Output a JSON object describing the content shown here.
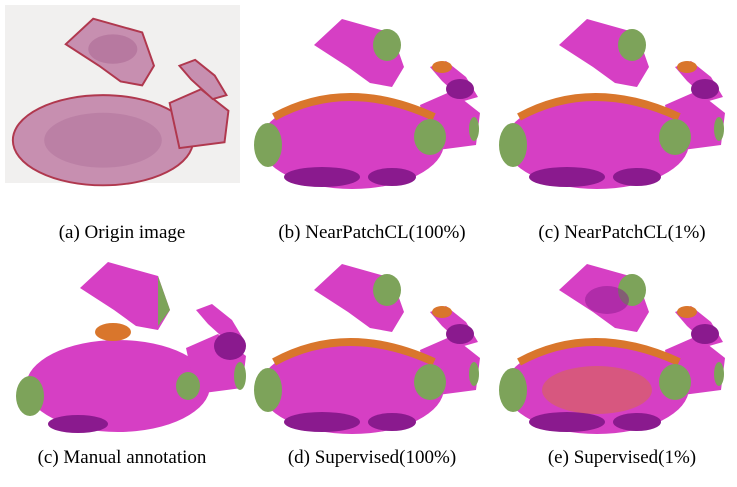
{
  "figure": {
    "panels": [
      {
        "caption": "(a) Origin image"
      },
      {
        "caption": "(b) NearPatchCL(100%)"
      },
      {
        "caption": "(c) NearPatchCL(1%)"
      },
      {
        "caption": "(c) Manual annotation"
      },
      {
        "caption": "(d) Supervised(100%)"
      },
      {
        "caption": "(e) Supervised(1%)"
      }
    ]
  }
}
